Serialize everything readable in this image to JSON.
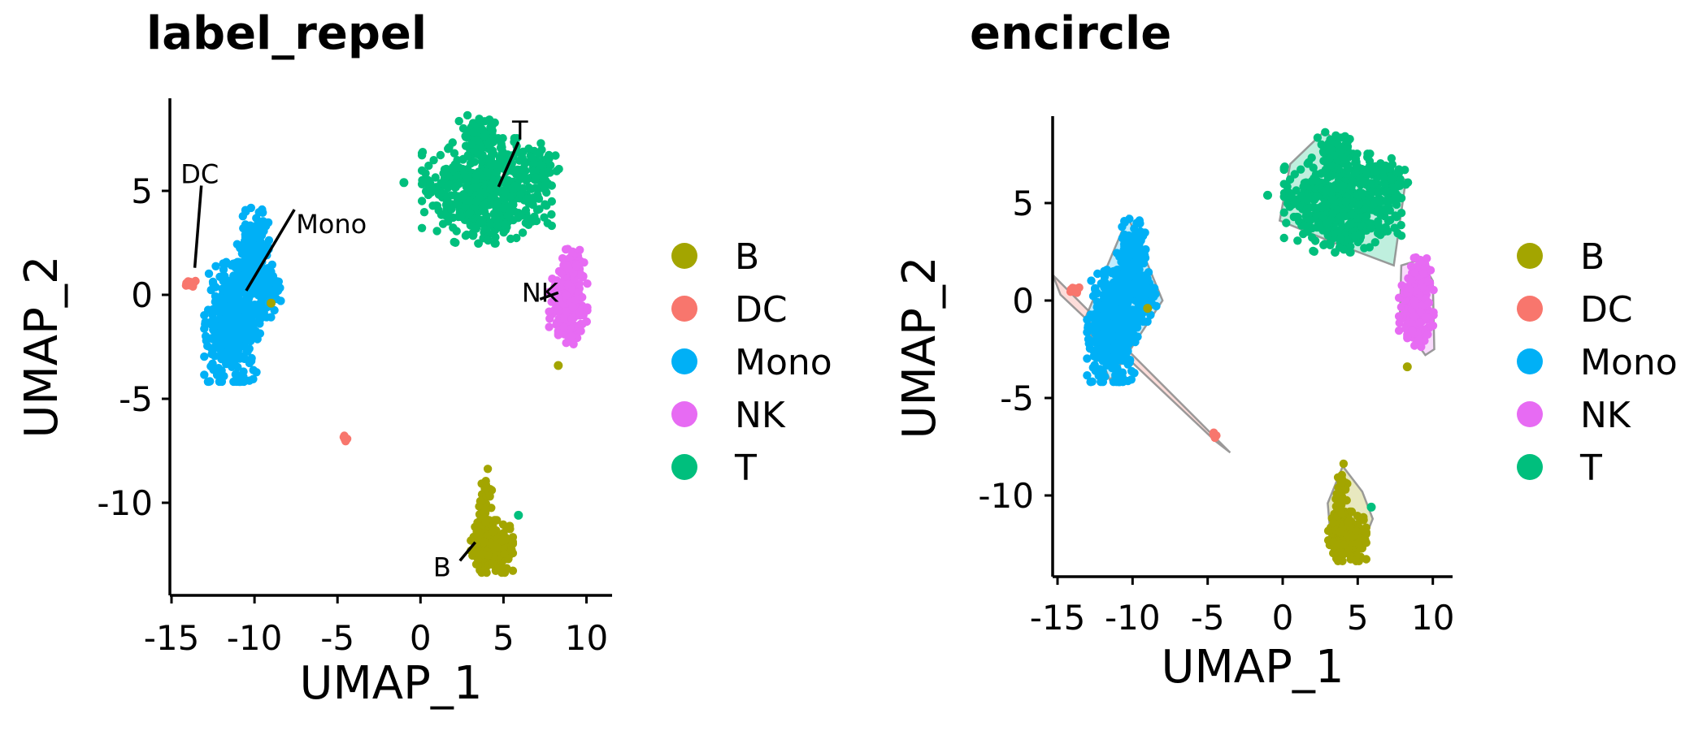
{
  "colors": {
    "B": "#A3A500",
    "DC": "#F8766D",
    "Mono": "#00B0F6",
    "NK": "#E76BF3",
    "T": "#00BF7D"
  },
  "chart_data": [
    {
      "type": "scatter",
      "title": "label_repel",
      "xlabel": "UMAP_1",
      "ylabel": "UMAP_2",
      "xlim": [
        -16,
        12
      ],
      "ylim": [
        -14.5,
        9.5
      ],
      "x_ticks": [
        -15,
        -10,
        -5,
        0,
        5,
        10
      ],
      "x_tick_labels": [
        "-15",
        "-10",
        "-5",
        "0",
        "5",
        "10"
      ],
      "y_ticks": [
        5,
        0,
        -5,
        -10
      ],
      "y_tick_labels": [
        "5",
        "0",
        "-5",
        "-10"
      ],
      "legend": {
        "position": "right",
        "entries": [
          "B",
          "DC",
          "Mono",
          "NK",
          "T"
        ]
      },
      "annotation_style": "label_repel",
      "cluster_labels": [
        {
          "text": "DC",
          "x": -13.3,
          "y": 5.8,
          "anchor_x": -13.6,
          "anchor_y": 1.3
        },
        {
          "text": "Mono",
          "x": -7.3,
          "y": 3.4,
          "anchor_x": -10.5,
          "anchor_y": 0.2
        },
        {
          "text": "T",
          "x": 6.0,
          "y": 7.9,
          "anchor_x": 4.7,
          "anchor_y": 5.2
        },
        {
          "text": "NK",
          "x": 7.2,
          "y": 0.1,
          "anchor_x": 8.3,
          "anchor_y": 0.1
        },
        {
          "text": "B",
          "x": 1.3,
          "y": -13.1,
          "anchor_x": 3.3,
          "anchor_y": -11.9
        }
      ],
      "clusters": [
        {
          "name": "Mono",
          "blobs": [
            {
              "cx": -11.3,
              "cy": -1.3,
              "sx": 0.75,
              "sy": 1.25,
              "n": 500
            },
            {
              "cx": -10.0,
              "cy": 1.9,
              "sx": 0.5,
              "sy": 1.1,
              "n": 180
            },
            {
              "cx": -9.1,
              "cy": 0.3,
              "sx": 0.35,
              "sy": 0.6,
              "n": 70
            }
          ]
        },
        {
          "name": "T",
          "blobs": [
            {
              "cx": 4.0,
              "cy": 5.0,
              "sx": 1.7,
              "sy": 1.1,
              "n": 520
            },
            {
              "cx": 3.7,
              "cy": 7.6,
              "sx": 0.6,
              "sy": 0.45,
              "n": 80
            },
            {
              "cx": 7.2,
              "cy": 6.0,
              "sx": 0.55,
              "sy": 0.6,
              "n": 60
            }
          ]
        },
        {
          "name": "NK",
          "blobs": [
            {
              "cx": 8.9,
              "cy": -0.6,
              "sx": 0.5,
              "sy": 0.8,
              "n": 220
            },
            {
              "cx": 9.1,
              "cy": 1.4,
              "sx": 0.35,
              "sy": 0.35,
              "n": 50
            }
          ]
        },
        {
          "name": "B",
          "blobs": [
            {
              "cx": 4.3,
              "cy": -12.1,
              "sx": 0.55,
              "sy": 0.55,
              "n": 260
            },
            {
              "cx": 3.9,
              "cy": -10.2,
              "sx": 0.2,
              "sy": 0.8,
              "n": 50
            }
          ]
        },
        {
          "name": "DC",
          "blobs": [
            {
              "cx": -13.9,
              "cy": 0.55,
              "sx": 0.15,
              "sy": 0.08,
              "n": 20
            },
            {
              "cx": -4.5,
              "cy": -6.9,
              "sx": 0.06,
              "sy": 0.06,
              "n": 6
            }
          ]
        }
      ],
      "outlier_points": [
        {
          "series": "T",
          "x": -1.0,
          "y": 5.4
        },
        {
          "series": "T",
          "x": 5.9,
          "y": -10.6
        },
        {
          "series": "B",
          "x": 8.3,
          "y": -3.4
        },
        {
          "series": "B",
          "x": -9.0,
          "y": -0.4
        }
      ]
    },
    {
      "type": "scatter",
      "title": "encircle",
      "xlabel": "UMAP_1",
      "ylabel": "UMAP_2",
      "xlim": [
        -16,
        12
      ],
      "ylim": [
        -14.5,
        9.5
      ],
      "x_ticks": [
        -15,
        -10,
        -5,
        0,
        5,
        10
      ],
      "x_tick_labels": [
        "-15",
        "-10",
        "-5",
        "0",
        "5",
        "10"
      ],
      "y_ticks": [
        5,
        0,
        -5,
        -10
      ],
      "y_tick_labels": [
        "5",
        "0",
        "-5",
        "-10"
      ],
      "legend": {
        "position": "right",
        "entries": [
          "B",
          "DC",
          "Mono",
          "NK",
          "T"
        ]
      },
      "annotation_style": "encircle",
      "hulls": [
        {
          "series": "Mono",
          "points": [
            [
              -10.3,
              4.3
            ],
            [
              -8.0,
              0.0
            ],
            [
              -11.5,
              -4.1
            ],
            [
              -13.2,
              -1.0
            ]
          ]
        },
        {
          "series": "T",
          "points": [
            [
              2.8,
              8.7
            ],
            [
              5.8,
              6.5
            ],
            [
              8.2,
              6.2
            ],
            [
              7.4,
              1.8
            ],
            [
              3.6,
              2.9
            ],
            [
              -0.2,
              4.1
            ],
            [
              0.5,
              7.0
            ]
          ]
        },
        {
          "series": "NK",
          "points": [
            [
              9.2,
              2.1
            ],
            [
              10.0,
              1.0
            ],
            [
              10.1,
              -2.5
            ],
            [
              9.5,
              -2.8
            ],
            [
              7.8,
              -1.0
            ],
            [
              7.9,
              1.8
            ]
          ]
        },
        {
          "series": "B",
          "points": [
            [
              4.0,
              -8.5
            ],
            [
              5.3,
              -9.8
            ],
            [
              6.0,
              -11.2
            ],
            [
              4.8,
              -13.5
            ],
            [
              3.2,
              -12.2
            ],
            [
              3.0,
              -10.4
            ]
          ]
        },
        {
          "series": "DC",
          "points": [
            [
              -15.3,
              1.3
            ],
            [
              -3.5,
              -7.8
            ],
            [
              -4.5,
              -7.2
            ],
            [
              -14.8,
              0.3
            ]
          ]
        }
      ],
      "clusters": [
        {
          "name": "Mono",
          "blobs": [
            {
              "cx": -11.3,
              "cy": -1.3,
              "sx": 0.75,
              "sy": 1.25,
              "n": 500
            },
            {
              "cx": -10.0,
              "cy": 1.9,
              "sx": 0.5,
              "sy": 1.1,
              "n": 180
            },
            {
              "cx": -9.1,
              "cy": 0.3,
              "sx": 0.35,
              "sy": 0.6,
              "n": 70
            }
          ]
        },
        {
          "name": "T",
          "blobs": [
            {
              "cx": 4.0,
              "cy": 5.0,
              "sx": 1.7,
              "sy": 1.1,
              "n": 520
            },
            {
              "cx": 3.7,
              "cy": 7.6,
              "sx": 0.6,
              "sy": 0.45,
              "n": 80
            },
            {
              "cx": 7.2,
              "cy": 6.0,
              "sx": 0.55,
              "sy": 0.6,
              "n": 60
            }
          ]
        },
        {
          "name": "NK",
          "blobs": [
            {
              "cx": 8.9,
              "cy": -0.6,
              "sx": 0.5,
              "sy": 0.8,
              "n": 220
            },
            {
              "cx": 9.1,
              "cy": 1.4,
              "sx": 0.35,
              "sy": 0.35,
              "n": 50
            }
          ]
        },
        {
          "name": "B",
          "blobs": [
            {
              "cx": 4.3,
              "cy": -12.1,
              "sx": 0.55,
              "sy": 0.55,
              "n": 260
            },
            {
              "cx": 3.9,
              "cy": -10.2,
              "sx": 0.2,
              "sy": 0.8,
              "n": 50
            }
          ]
        },
        {
          "name": "DC",
          "blobs": [
            {
              "cx": -13.9,
              "cy": 0.55,
              "sx": 0.15,
              "sy": 0.08,
              "n": 20
            },
            {
              "cx": -4.5,
              "cy": -6.9,
              "sx": 0.06,
              "sy": 0.06,
              "n": 6
            }
          ]
        }
      ],
      "outlier_points": [
        {
          "series": "T",
          "x": -1.0,
          "y": 5.4
        },
        {
          "series": "T",
          "x": 5.9,
          "y": -10.6
        },
        {
          "series": "B",
          "x": 8.3,
          "y": -3.4
        },
        {
          "series": "B",
          "x": -9.0,
          "y": -0.4
        }
      ]
    }
  ]
}
